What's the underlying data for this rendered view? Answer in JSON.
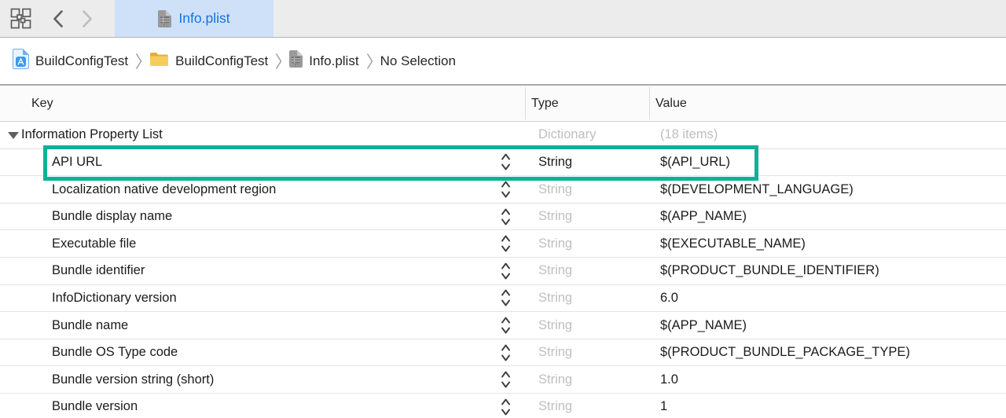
{
  "tab_bar": {
    "active_tab": {
      "label": "Info.plist",
      "icon": "plist-file-icon"
    }
  },
  "breadcrumb": {
    "items": [
      {
        "label": "BuildConfigTest",
        "icon": "project-icon"
      },
      {
        "label": "BuildConfigTest",
        "icon": "folder-icon"
      },
      {
        "label": "Info.plist",
        "icon": "plist-file-icon"
      },
      {
        "label": "No Selection",
        "icon": null
      }
    ]
  },
  "table": {
    "columns": [
      "Key",
      "Type",
      "Value"
    ],
    "rows": [
      {
        "key": "Information Property List",
        "type": "Dictionary",
        "value": "(18 items)",
        "root": true,
        "disclosure": true,
        "stepper": false,
        "type_muted": true,
        "value_muted": true,
        "highlighted": false
      },
      {
        "key": "API URL",
        "type": "String",
        "value": "$(API_URL)",
        "root": false,
        "disclosure": false,
        "stepper": true,
        "type_muted": false,
        "value_muted": false,
        "highlighted": true
      },
      {
        "key": "Localization native development region",
        "type": "String",
        "value": "$(DEVELOPMENT_LANGUAGE)",
        "root": false,
        "disclosure": false,
        "stepper": true,
        "type_muted": true,
        "value_muted": false,
        "highlighted": false
      },
      {
        "key": "Bundle display name",
        "type": "String",
        "value": "$(APP_NAME)",
        "root": false,
        "disclosure": false,
        "stepper": true,
        "type_muted": true,
        "value_muted": false,
        "highlighted": false
      },
      {
        "key": "Executable file",
        "type": "String",
        "value": "$(EXECUTABLE_NAME)",
        "root": false,
        "disclosure": false,
        "stepper": true,
        "type_muted": true,
        "value_muted": false,
        "highlighted": false
      },
      {
        "key": "Bundle identifier",
        "type": "String",
        "value": "$(PRODUCT_BUNDLE_IDENTIFIER)",
        "root": false,
        "disclosure": false,
        "stepper": true,
        "type_muted": true,
        "value_muted": false,
        "highlighted": false
      },
      {
        "key": "InfoDictionary version",
        "type": "String",
        "value": "6.0",
        "root": false,
        "disclosure": false,
        "stepper": true,
        "type_muted": true,
        "value_muted": false,
        "highlighted": false
      },
      {
        "key": "Bundle name",
        "type": "String",
        "value": "$(APP_NAME)",
        "root": false,
        "disclosure": false,
        "stepper": true,
        "type_muted": true,
        "value_muted": false,
        "highlighted": false
      },
      {
        "key": "Bundle OS Type code",
        "type": "String",
        "value": "$(PRODUCT_BUNDLE_PACKAGE_TYPE)",
        "root": false,
        "disclosure": false,
        "stepper": true,
        "type_muted": true,
        "value_muted": false,
        "highlighted": false
      },
      {
        "key": "Bundle version string (short)",
        "type": "String",
        "value": "1.0",
        "root": false,
        "disclosure": false,
        "stepper": true,
        "type_muted": true,
        "value_muted": false,
        "highlighted": false
      },
      {
        "key": "Bundle version",
        "type": "String",
        "value": "1",
        "root": false,
        "disclosure": false,
        "stepper": true,
        "type_muted": true,
        "value_muted": false,
        "highlighted": false
      }
    ]
  },
  "colors": {
    "tab_text_blue": "#1673E1",
    "tab_background_blue": "#CFE1F8",
    "highlight_teal": "#0FB196",
    "muted_text_gray": "#BFBFBF",
    "folder_yellow": "#F6CD5D"
  }
}
